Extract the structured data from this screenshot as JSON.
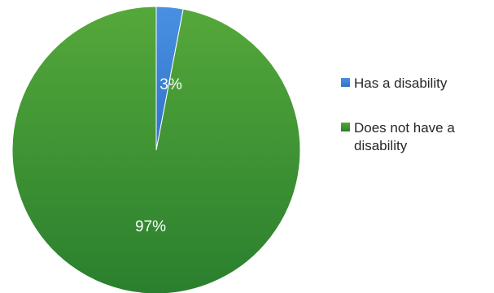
{
  "chart_data": {
    "type": "pie",
    "categories": [
      "Has a disability",
      "Does not have a disability"
    ],
    "values": [
      3,
      97
    ],
    "labels": [
      "3%",
      "97%"
    ],
    "colors": [
      "#4a90e2",
      "#55a83a"
    ],
    "gradient_dark": [
      "#2f73c8",
      "#2a7f2e"
    ],
    "legend": {
      "placement": "right",
      "entries": [
        {
          "lines": [
            "Has a disability"
          ]
        },
        {
          "lines": [
            "Does not have a",
            "disability"
          ]
        }
      ]
    }
  }
}
